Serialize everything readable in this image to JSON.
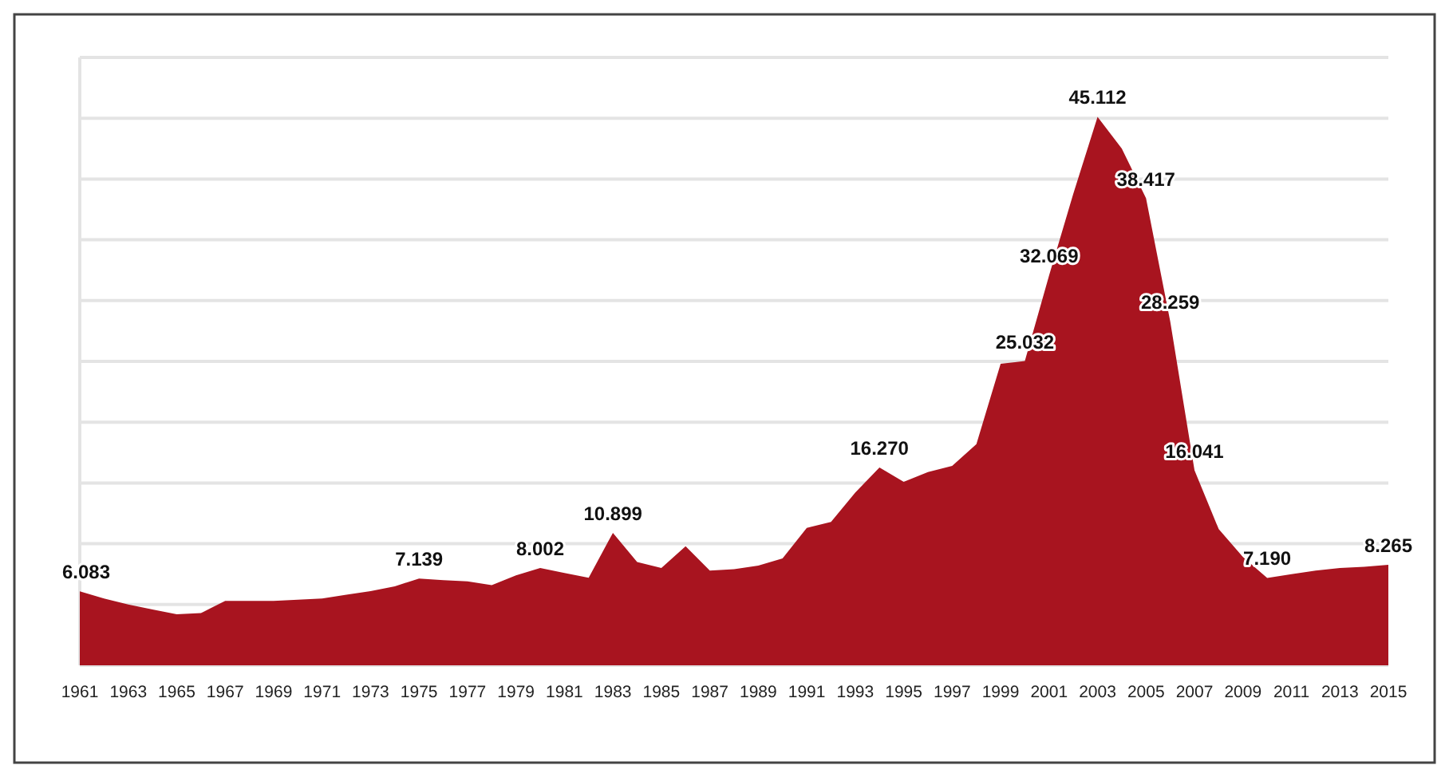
{
  "chart_data": {
    "type": "area",
    "x": [
      1961,
      1962,
      1963,
      1964,
      1965,
      1966,
      1967,
      1968,
      1969,
      1970,
      1971,
      1972,
      1973,
      1974,
      1975,
      1976,
      1977,
      1978,
      1979,
      1980,
      1981,
      1982,
      1983,
      1984,
      1985,
      1986,
      1987,
      1988,
      1989,
      1990,
      1991,
      1992,
      1993,
      1994,
      1995,
      1996,
      1997,
      1998,
      1999,
      2000,
      2001,
      2002,
      2003,
      2004,
      2005,
      2006,
      2007,
      2008,
      2009,
      2010,
      2011,
      2012,
      2013,
      2014,
      2015
    ],
    "series": [
      {
        "color": "#a8141f",
        "values": [
          6.083,
          5.5,
          5.0,
          4.6,
          4.2,
          4.3,
          5.3,
          5.3,
          5.3,
          5.4,
          5.5,
          5.8,
          6.1,
          6.5,
          7.139,
          7.0,
          6.9,
          6.6,
          7.4,
          8.002,
          7.6,
          7.2,
          10.899,
          8.5,
          8.0,
          9.8,
          7.8,
          7.9,
          8.2,
          8.8,
          11.3,
          11.8,
          14.2,
          16.27,
          15.1,
          15.9,
          16.4,
          18.2,
          24.8,
          25.032,
          32.069,
          38.8,
          45.112,
          42.5,
          38.417,
          28.259,
          16.041,
          11.2,
          8.9,
          7.19,
          7.5,
          7.8,
          8.0,
          8.1,
          8.265
        ],
        "value_labels": [
          "6.083",
          null,
          null,
          null,
          null,
          null,
          null,
          null,
          null,
          null,
          null,
          null,
          null,
          null,
          "7.139",
          null,
          null,
          null,
          null,
          "8.002",
          null,
          null,
          "10.899",
          null,
          null,
          null,
          null,
          null,
          null,
          null,
          null,
          null,
          null,
          "16.270",
          null,
          null,
          null,
          null,
          null,
          "25.032",
          "32.069",
          null,
          "45.112",
          null,
          "38.417",
          "28.259",
          "16.041",
          null,
          null,
          "7.190",
          null,
          null,
          null,
          null,
          "8.265"
        ]
      }
    ],
    "xlim": [
      1961,
      2015
    ],
    "xticks": [
      1961,
      1963,
      1965,
      1967,
      1969,
      1971,
      1973,
      1975,
      1977,
      1979,
      1981,
      1983,
      1985,
      1987,
      1989,
      1991,
      1993,
      1995,
      1997,
      1999,
      2001,
      2003,
      2005,
      2007,
      2009,
      2011,
      2013,
      2015
    ],
    "ylim": [
      0,
      50
    ],
    "yticks": [
      {
        "value": 0,
        "label": null
      },
      {
        "value": 5,
        "label": null
      },
      {
        "value": 10,
        "label": null
      },
      {
        "value": 15,
        "label": null
      },
      {
        "value": 20,
        "label": null
      },
      {
        "value": 25,
        "label": null
      },
      {
        "value": 30,
        "label": null
      },
      {
        "value": 35,
        "label": null
      },
      {
        "value": 40,
        "label": null
      },
      {
        "value": 45,
        "label": null
      },
      {
        "value": 50,
        "label": null
      }
    ],
    "grid": "y"
  }
}
